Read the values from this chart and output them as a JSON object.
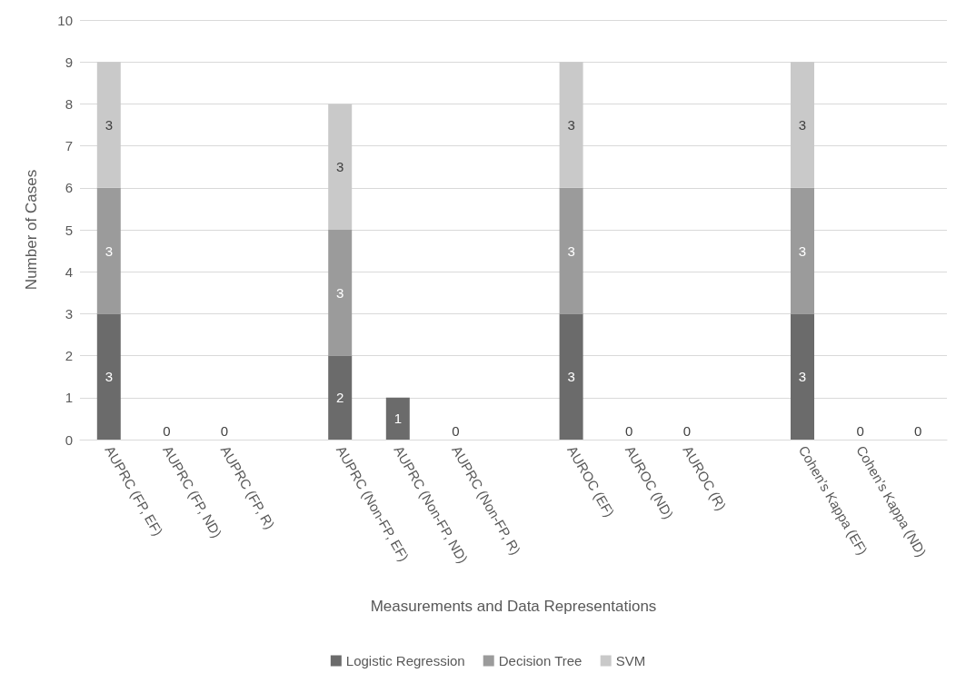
{
  "chart_data": {
    "type": "bar",
    "stacked": true,
    "xlabel": "Measurements and Data Representations",
    "ylabel": "Number of Cases",
    "categories": [
      "AUPRC (FP, EF)",
      "AUPRC (FP, ND)",
      "AUPRC (FP, R)",
      null,
      "AUPRC (Non-FP, EF)",
      "AUPRC (Non-FP, ND)",
      "AUPRC (Non-FP, R)",
      null,
      "AUROC (EF)",
      "AUROC (ND)",
      "AUROC (R)",
      null,
      "Cohen’s Kappa (EF)",
      "Cohen’s Kappa (ND)",
      null
    ],
    "series": [
      {
        "name": "Logistic Regression",
        "color": "#6b6b6b",
        "values": [
          3,
          0,
          0,
          null,
          2,
          1,
          0,
          null,
          3,
          0,
          0,
          null,
          3,
          0,
          0
        ]
      },
      {
        "name": "Decision Tree",
        "color": "#9b9b9b",
        "values": [
          3,
          null,
          null,
          null,
          3,
          null,
          null,
          null,
          3,
          null,
          null,
          null,
          3,
          null,
          null
        ]
      },
      {
        "name": "SVM",
        "color": "#c9c9c9",
        "values": [
          3,
          null,
          null,
          null,
          3,
          null,
          null,
          null,
          3,
          null,
          null,
          null,
          3,
          null,
          null
        ]
      }
    ],
    "ylim": [
      0,
      10
    ],
    "yticks": [
      0,
      1,
      2,
      3,
      4,
      5,
      6,
      7,
      8,
      9,
      10
    ],
    "grid": "y",
    "legend": "bottom",
    "data_labels": true
  }
}
